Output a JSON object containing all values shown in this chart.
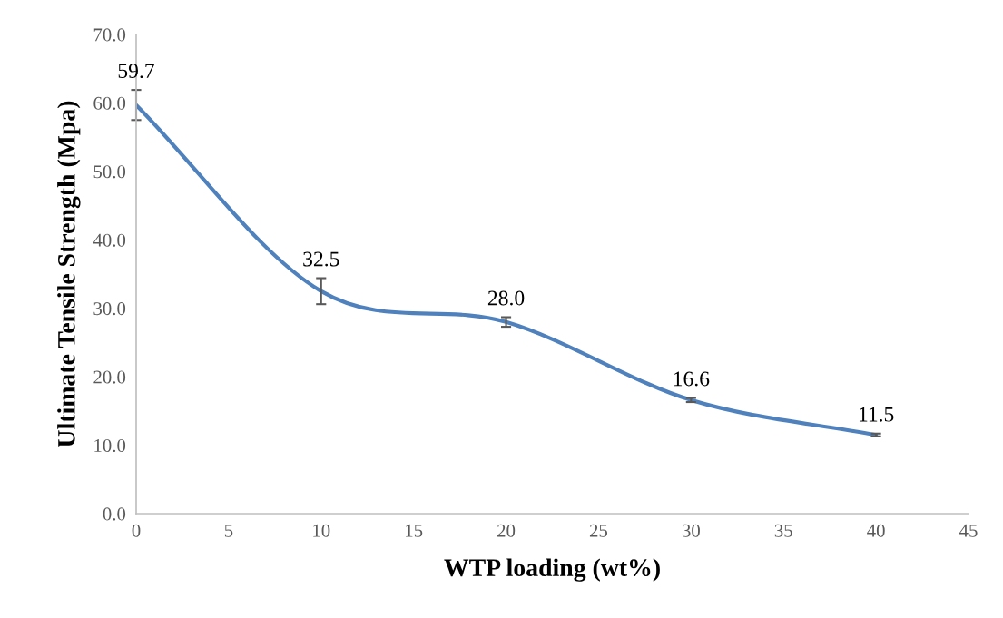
{
  "chart_data": {
    "type": "line",
    "xlabel": "WTP loading (wt%)",
    "ylabel": "Ultimate Tensile Strength (Mpa)",
    "x": [
      0,
      10,
      20,
      30,
      40
    ],
    "series": [
      {
        "color": "#4f81bd",
        "values": [
          59.7,
          32.5,
          28.0,
          16.6,
          11.5
        ],
        "value_labels": [
          "59.7",
          "32.5",
          "28.0",
          "16.6",
          "11.5"
        ],
        "errors": [
          2.2,
          1.9,
          0.7,
          0.3,
          0.2
        ]
      }
    ],
    "marker": "none",
    "line_style": "solid",
    "grid": false,
    "xlim": [
      0,
      45
    ],
    "xticks": [
      0,
      5,
      10,
      15,
      20,
      25,
      30,
      35,
      40,
      45
    ],
    "ylim": [
      0,
      70
    ],
    "yticks": [
      {
        "value": 0,
        "label": "0.0"
      },
      {
        "value": 10,
        "label": "10.0"
      },
      {
        "value": 20,
        "label": "20.0"
      },
      {
        "value": 30,
        "label": "30.0"
      },
      {
        "value": 40,
        "label": "40.0"
      },
      {
        "value": 50,
        "label": "50.0"
      },
      {
        "value": 60,
        "label": "60.0"
      },
      {
        "value": 70,
        "label": "70.0"
      }
    ]
  }
}
